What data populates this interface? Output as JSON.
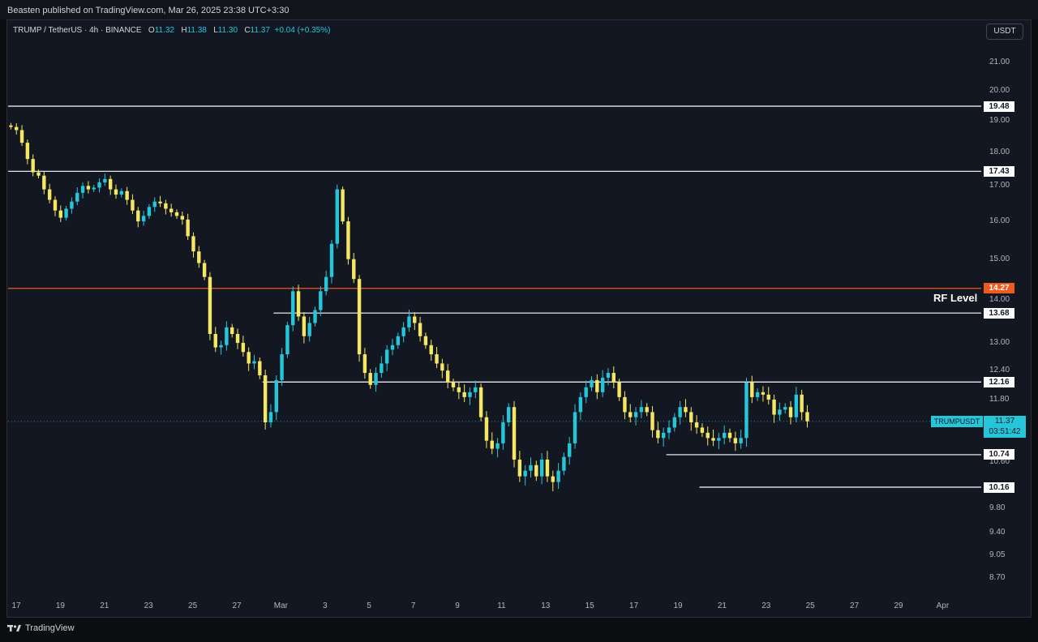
{
  "header": {
    "published": "Beasten published on TradingView.com, Mar 26, 2025 23:38 UTC+3:30"
  },
  "legend": {
    "pair": "TRUMP / TetherUS · 4h · BINANCE",
    "o_key": "O",
    "o_val": "11.32",
    "h_key": "H",
    "h_val": "11.38",
    "l_key": "L",
    "l_val": "11.30",
    "c_key": "C",
    "c_val": "11.37",
    "change": "+0.04 (+0.35%)"
  },
  "currency": "USDT",
  "price_scale": [
    {
      "label": "21.00",
      "v": 21.0
    },
    {
      "label": "20.00",
      "v": 20.0
    },
    {
      "label": "19.00",
      "v": 19.0
    },
    {
      "label": "18.00",
      "v": 18.0
    },
    {
      "label": "17.00",
      "v": 17.0
    },
    {
      "label": "16.00",
      "v": 16.0
    },
    {
      "label": "15.00",
      "v": 15.0
    },
    {
      "label": "14.00",
      "v": 14.0
    },
    {
      "label": "13.00",
      "v": 13.0
    },
    {
      "label": "12.40",
      "v": 12.4
    },
    {
      "label": "11.80",
      "v": 11.8
    },
    {
      "label": "10.60",
      "v": 10.6
    },
    {
      "label": "9.80",
      "v": 9.8
    },
    {
      "label": "9.40",
      "v": 9.4
    },
    {
      "label": "9.05",
      "v": 9.05
    },
    {
      "label": "8.70",
      "v": 8.7
    }
  ],
  "levels": [
    {
      "label": "19.48",
      "v": 19.48,
      "color": "#ffffff",
      "start_idx": 0
    },
    {
      "label": "17.43",
      "v": 17.43,
      "color": "#ffffff",
      "start_idx": 0
    },
    {
      "label": "14.27",
      "v": 14.27,
      "color": "#f05a1e",
      "start_idx": 0
    },
    {
      "label": "13.68",
      "v": 13.68,
      "color": "#ffffff",
      "start_idx": 48
    },
    {
      "label": "12.16",
      "v": 12.16,
      "color": "#ffffff",
      "start_idx": 46
    },
    {
      "label": "10.74",
      "v": 10.74,
      "color": "#ffffff",
      "start_idx": 119
    },
    {
      "label": "10.16",
      "v": 10.16,
      "color": "#ffffff",
      "start_idx": 125
    }
  ],
  "rf_label": "RF Level",
  "current": {
    "symbol": "TRUMPUSDT",
    "price": "11.37",
    "countdown": "03:51:42",
    "v": 11.37
  },
  "dates": [
    "17",
    "19",
    "21",
    "23",
    "25",
    "27",
    "Mar",
    "3",
    "5",
    "7",
    "9",
    "11",
    "13",
    "15",
    "17",
    "19",
    "21",
    "23",
    "25",
    "27",
    "29",
    "Apr"
  ],
  "footer": {
    "brand": "TradingView"
  },
  "colors": {
    "up": "#26c6da",
    "down": "#f5e663",
    "bg": "#131722"
  },
  "chart_data": {
    "type": "candlestick",
    "interval": "4h",
    "x_start": "Feb 17",
    "closes": [
      18.8,
      18.7,
      18.3,
      17.8,
      17.4,
      17.3,
      16.9,
      16.6,
      16.3,
      16.1,
      16.35,
      16.55,
      16.8,
      17.0,
      16.9,
      16.95,
      17.1,
      17.2,
      16.9,
      16.75,
      16.85,
      16.6,
      16.3,
      16.0,
      16.15,
      16.4,
      16.55,
      16.5,
      16.35,
      16.25,
      16.15,
      16.05,
      15.6,
      15.2,
      14.9,
      14.55,
      13.2,
      12.9,
      12.95,
      13.35,
      13.2,
      13.0,
      12.8,
      12.55,
      12.6,
      12.3,
      11.35,
      11.55,
      12.2,
      12.75,
      13.4,
      14.2,
      13.6,
      13.15,
      13.45,
      13.75,
      14.2,
      14.55,
      15.4,
      16.9,
      16.0,
      15.0,
      14.5,
      12.75,
      12.35,
      12.1,
      12.35,
      12.55,
      12.85,
      12.95,
      13.15,
      13.35,
      13.6,
      13.45,
      13.15,
      12.95,
      12.75,
      12.55,
      12.4,
      12.15,
      12.05,
      11.95,
      11.85,
      11.95,
      12.05,
      11.45,
      11.0,
      10.85,
      10.95,
      11.35,
      11.65,
      10.65,
      10.35,
      10.45,
      10.55,
      10.35,
      10.65,
      10.35,
      10.25,
      10.45,
      10.7,
      10.95,
      11.55,
      11.85,
      12.05,
      12.2,
      11.95,
      12.25,
      12.35,
      12.15,
      11.85,
      11.55,
      11.45,
      11.55,
      11.65,
      11.55,
      11.2,
      11.05,
      11.15,
      11.25,
      11.45,
      11.65,
      11.55,
      11.35,
      11.25,
      11.15,
      11.05,
      11.0,
      11.05,
      11.15,
      11.05,
      10.95,
      11.05,
      12.15,
      11.85,
      11.95,
      11.9,
      11.8,
      11.5,
      11.6,
      11.65,
      11.45,
      11.9,
      11.55,
      11.37
    ],
    "ylim": [
      8.5,
      21.6
    ]
  }
}
